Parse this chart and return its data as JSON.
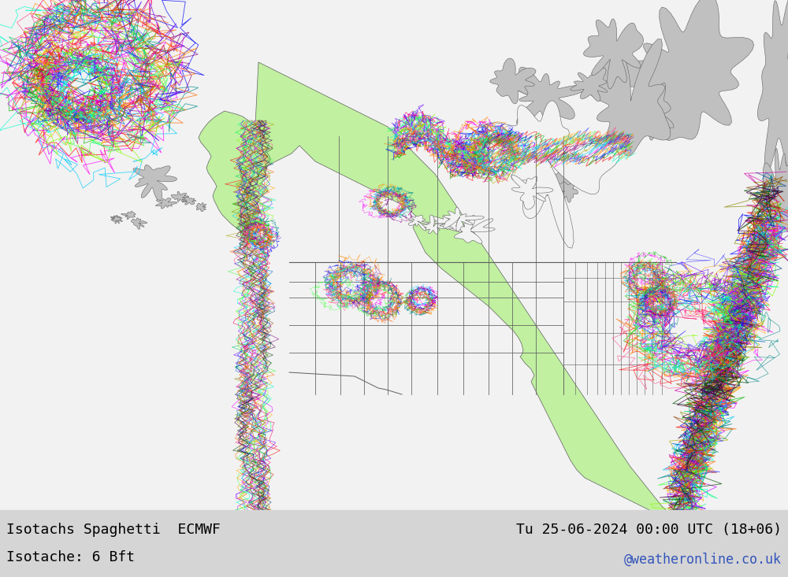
{
  "title_left": "Isotachs Spaghetti  ECMWF",
  "title_right": "Tu 25-06-2024 00:00 UTC (18+06)",
  "subtitle_left": "Isotache: 6 Bft",
  "subtitle_right": "@weatheronline.co.uk",
  "background_color": "#ebebeb",
  "ocean_color": "#f2f2f2",
  "land_main_color": "#c0f0a0",
  "land_other_color": "#c0c0c0",
  "border_color": "#606060",
  "text_color_black": "#000000",
  "text_color_blue": "#3355bb",
  "bottom_bar_color": "#d5d5d5",
  "figsize": [
    10.0,
    7.33
  ],
  "dpi": 100,
  "ensemble_colors": [
    "#ff0000",
    "#00bb00",
    "#0000ff",
    "#ff8800",
    "#ff00ff",
    "#00ccff",
    "#aaaa00",
    "#008888",
    "#880088",
    "#ff4488",
    "#ff6600",
    "#44ff44",
    "#4444ff",
    "#ffaa00",
    "#00ffcc",
    "#cc00ff",
    "#88ff00",
    "#00ff88",
    "#ff0066",
    "#6600ff",
    "#cc2200",
    "#00cc66",
    "#0066cc",
    "#cc6600",
    "#cc00aa",
    "#888800",
    "#004488",
    "#884400",
    "#004400",
    "#440044"
  ]
}
